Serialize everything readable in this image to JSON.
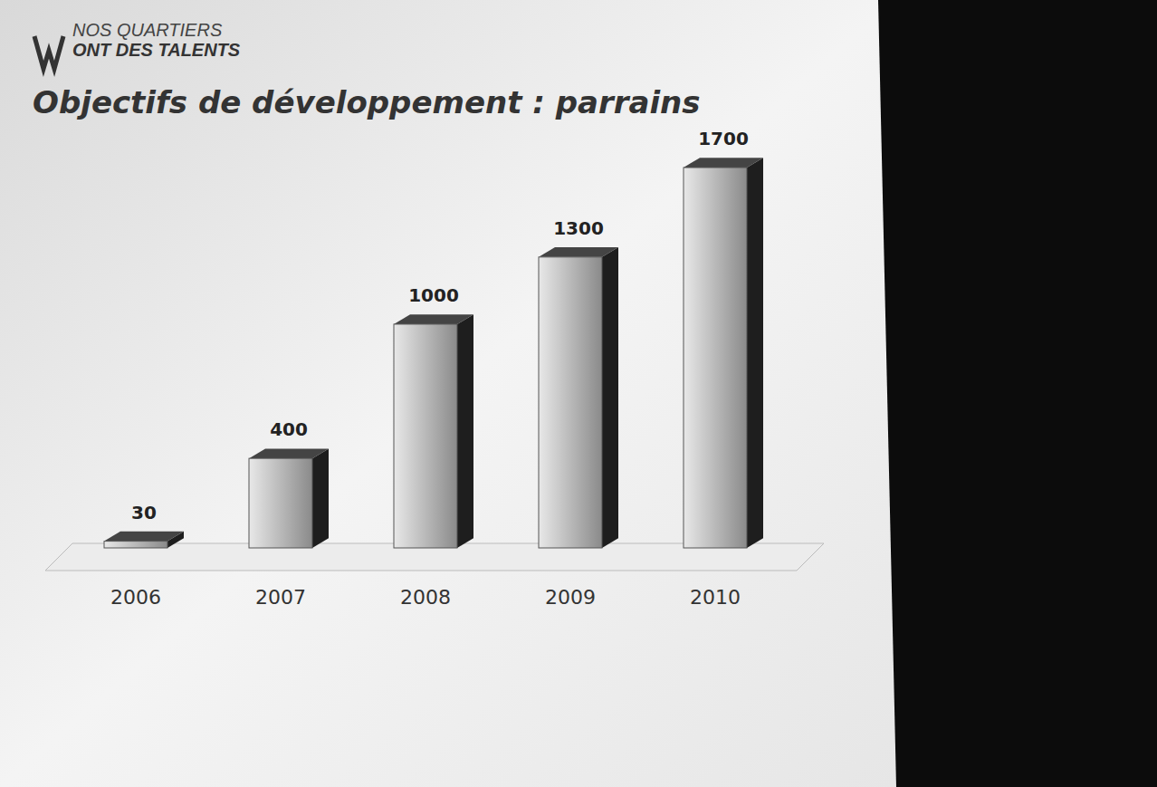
{
  "logo": {
    "lines": [
      "NOS QUARTIERS",
      "ONT DES TALENTS"
    ]
  },
  "chart_data": {
    "type": "bar",
    "title": "Objectifs de développement : parrains",
    "categories": [
      "2006",
      "2007",
      "2008",
      "2009",
      "2010"
    ],
    "values": [
      30,
      400,
      1000,
      1300,
      1700
    ],
    "color": "#8a8a8a",
    "data_labels": true,
    "tick_labels": "x",
    "grid": false
  }
}
